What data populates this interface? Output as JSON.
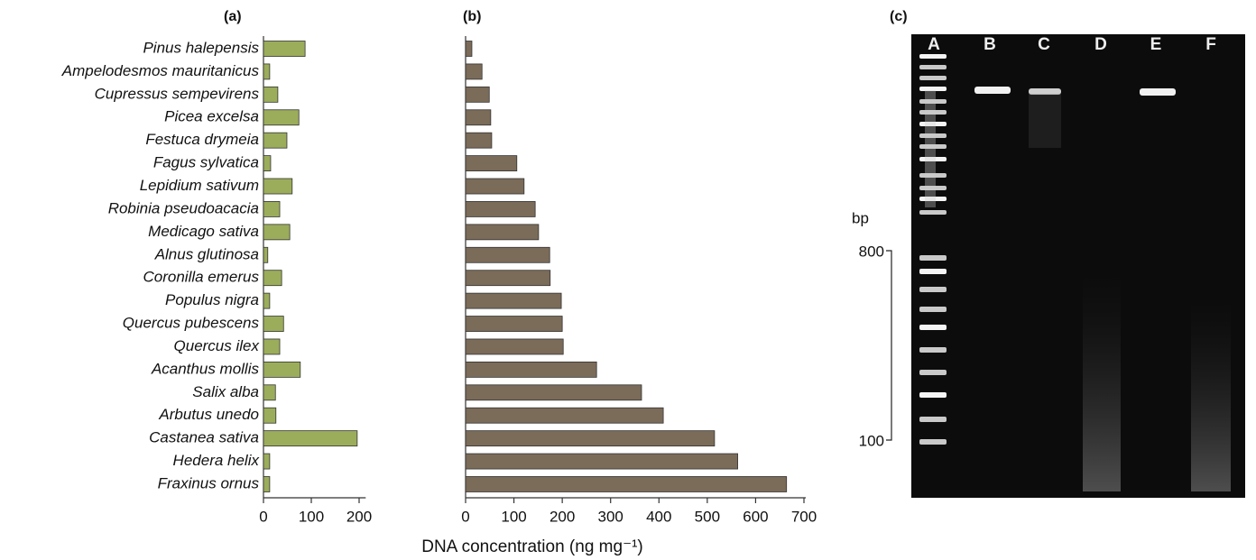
{
  "chart_data": [
    {
      "type": "barh",
      "title": "(a)",
      "categories": [
        "Pinus halepensis",
        "Ampelodesmos mauritanicus",
        "Cupressus sempevirens",
        "Picea excelsa",
        "Festuca drymeia",
        "Fagus sylvatica",
        "Lepidium sativum",
        "Robinia pseudoacacia",
        "Medicago sativa",
        "Alnus glutinosa",
        "Coronilla emerus",
        "Populus nigra",
        "Quercus pubescens",
        "Quercus ilex",
        "Acanthus mollis",
        "Salix alba",
        "Arbutus unedo",
        "Castanea sativa",
        "Hedera helix",
        "Fraxinus ornus"
      ],
      "values": [
        87,
        13,
        30,
        74,
        49,
        15,
        60,
        34,
        55,
        9,
        38,
        13,
        42,
        34,
        77,
        25,
        26,
        196,
        13,
        13
      ],
      "color": "#9bad5b",
      "xlim": [
        0,
        210
      ],
      "xticks": [
        0,
        100,
        200
      ]
    },
    {
      "type": "barh",
      "title": "(b)",
      "x_label": "DNA concentration (ng mg⁻¹)",
      "values": [
        13,
        34,
        49,
        52,
        54,
        106,
        121,
        144,
        151,
        174,
        175,
        198,
        200,
        202,
        271,
        364,
        409,
        515,
        563,
        664
      ],
      "color": "#7b6b59",
      "xlim": [
        0,
        700
      ],
      "xticks": [
        0,
        100,
        200,
        300,
        400,
        500,
        600,
        700
      ]
    }
  ],
  "gel": {
    "title": "(c)",
    "lanes": [
      "A",
      "B",
      "C",
      "D",
      "E",
      "F"
    ],
    "unit": "bp",
    "markers": [
      "800",
      "100"
    ]
  }
}
